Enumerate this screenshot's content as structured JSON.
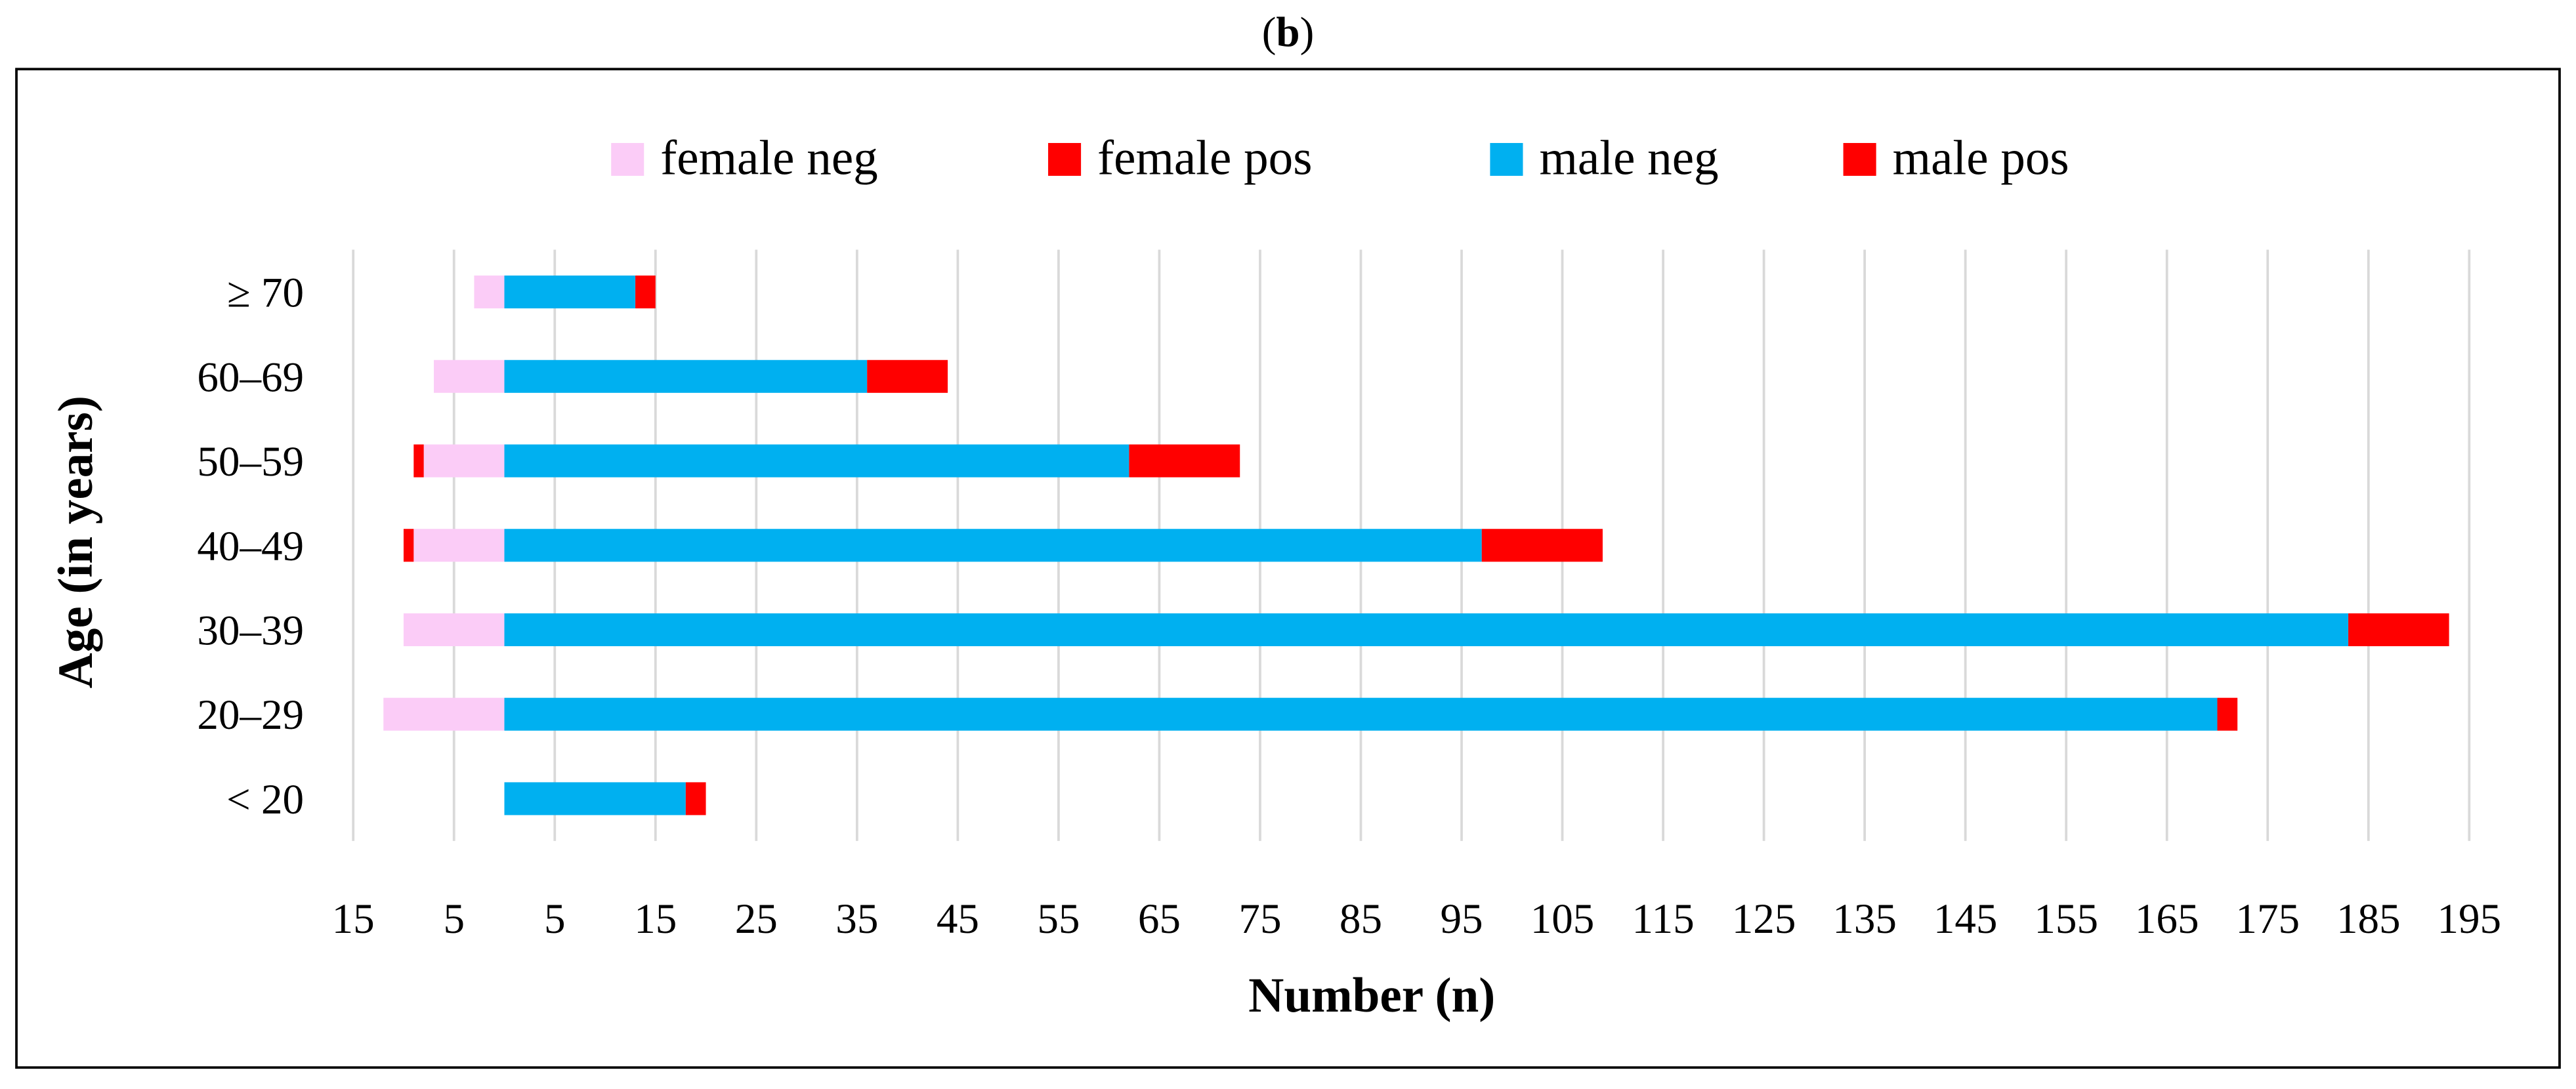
{
  "chart_data": {
    "type": "bar",
    "orientation": "horizontal",
    "stacked": true,
    "panel_label_prefix": "(",
    "panel_label_letter": "b",
    "panel_label_suffix": ")",
    "xlabel": "Number (n)",
    "ylabel": "Age (in years)",
    "categories": [
      "≥ 70",
      "60–69",
      "50–59",
      "40–49",
      "30–39",
      "20–29",
      "< 20"
    ],
    "x_ticks": [
      -15,
      -5,
      5,
      15,
      25,
      35,
      45,
      55,
      65,
      75,
      85,
      95,
      105,
      115,
      125,
      135,
      145,
      155,
      165,
      175,
      185,
      195
    ],
    "x_tick_labels": [
      "15",
      "5",
      "5",
      "15",
      "25",
      "35",
      "45",
      "55",
      "65",
      "75",
      "85",
      "95",
      "105",
      "115",
      "125",
      "135",
      "145",
      "155",
      "165",
      "175",
      "185",
      "195"
    ],
    "xlim": [
      -15,
      195
    ],
    "grid": "vertical",
    "legend_position": "top",
    "series": [
      {
        "name": "female neg",
        "color": "#FBCCF7",
        "side": "left",
        "values": [
          3,
          7,
          8,
          9,
          10,
          12,
          0
        ]
      },
      {
        "name": "female pos",
        "color": "#FF0000",
        "side": "left",
        "values": [
          0,
          0,
          1,
          1,
          0,
          0,
          0
        ]
      },
      {
        "name": "male neg",
        "color": "#00B0F0",
        "side": "right",
        "values": [
          13,
          36,
          62,
          97,
          183,
          170,
          18
        ]
      },
      {
        "name": "male pos",
        "color": "#FF0000",
        "side": "right",
        "values": [
          2,
          8,
          11,
          12,
          10,
          2,
          2
        ]
      }
    ]
  }
}
